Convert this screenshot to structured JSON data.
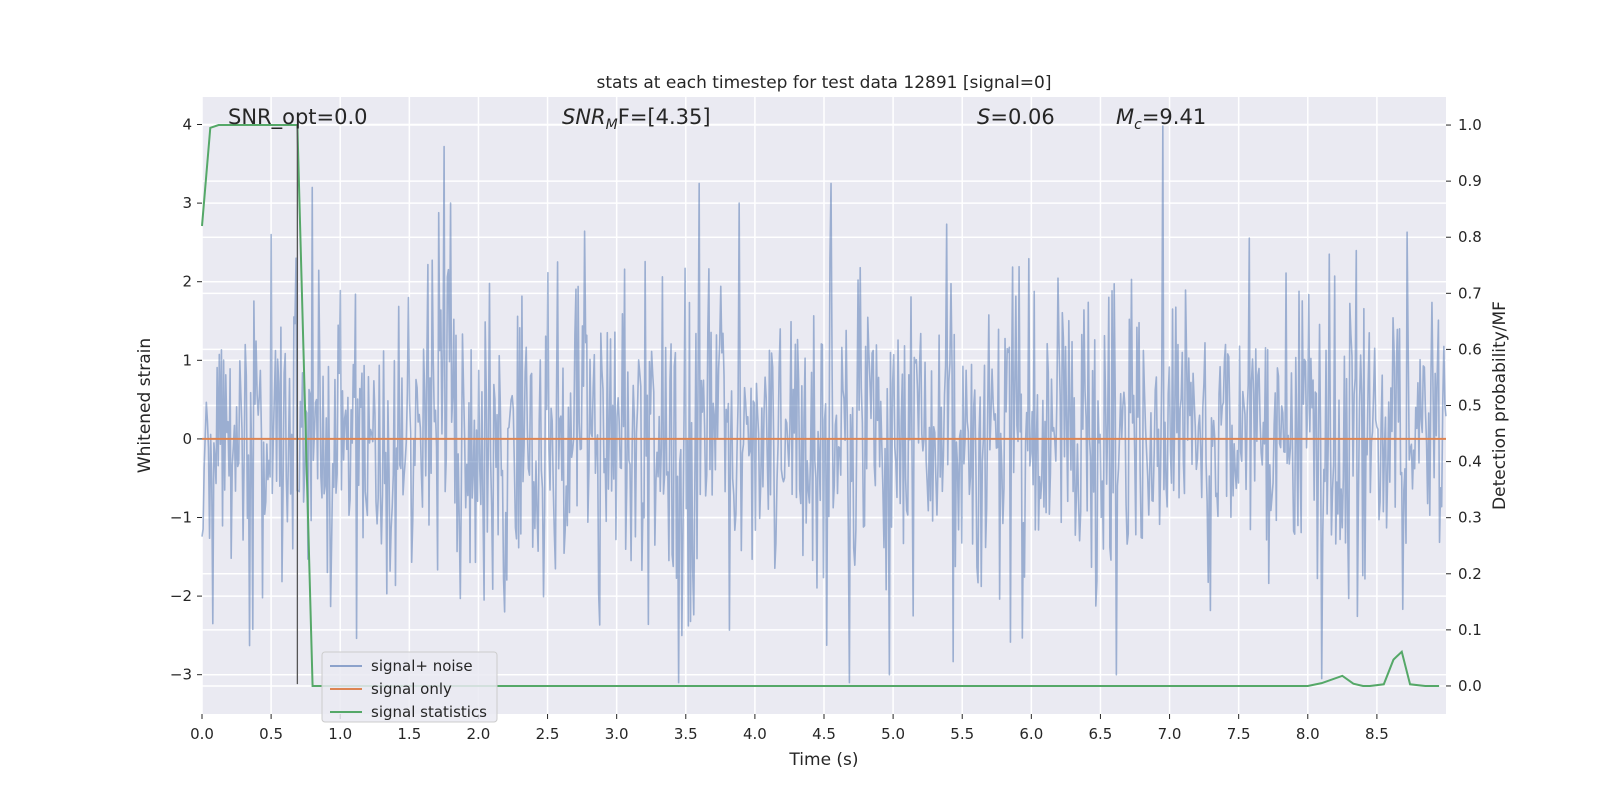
{
  "chart_data": {
    "type": "line",
    "title": "stats at each timestep for test data 12891 [signal=0]",
    "xlabel": "Time (s)",
    "ylabel": "Whitened strain",
    "y2label": "Detection probability/MF",
    "xlim": [
      0.0,
      9.0
    ],
    "ylim": [
      -3.5,
      4.35
    ],
    "y2lim": [
      -0.05,
      1.05
    ],
    "x_ticks": [
      "0.0",
      "0.5",
      "1.0",
      "1.5",
      "2.0",
      "2.5",
      "3.0",
      "3.5",
      "4.0",
      "4.5",
      "5.0",
      "5.5",
      "6.0",
      "6.5",
      "7.0",
      "7.5",
      "8.0",
      "8.5"
    ],
    "y_ticks": [
      "4",
      "3",
      "2",
      "1",
      "0",
      "−1",
      "−2",
      "−3"
    ],
    "y2_ticks": [
      "1.0",
      "0.9",
      "0.8",
      "0.7",
      "0.6",
      "0.5",
      "0.4",
      "0.3",
      "0.2",
      "0.1",
      "0.0"
    ],
    "grid": true,
    "legend_placement": "lower-left",
    "annotations": {
      "snr_opt": "SNR_opt=0.0",
      "snr_mf_main": "SNR",
      "snr_mf_sub": "M",
      "snr_mf_rest": "F=[4.35]",
      "s_main": "S",
      "s_rest": "=0.06",
      "mc_main": "M",
      "mc_sub": "c",
      "mc_rest": "=9.41"
    },
    "series": [
      {
        "name": "signal+ noise",
        "axis": "left",
        "color": "#4c72b0",
        "style": "noise",
        "seed": 12891,
        "n_samples": 1152,
        "spikes": [
          {
            "x": 0.08,
            "y": -2.35
          },
          {
            "x": 0.5,
            "y": 2.6
          },
          {
            "x": 0.68,
            "y": 2.3
          },
          {
            "x": 0.8,
            "y": 3.2
          },
          {
            "x": 1.75,
            "y": 3.72
          },
          {
            "x": 3.45,
            "y": -3.1
          },
          {
            "x": 3.6,
            "y": 3.25
          },
          {
            "x": 4.55,
            "y": 3.25
          },
          {
            "x": 4.68,
            "y": -3.1
          },
          {
            "x": 6.95,
            "y": 3.98
          },
          {
            "x": 8.1,
            "y": -3.05
          }
        ]
      },
      {
        "name": "signal only",
        "axis": "left",
        "color": "#dd8452",
        "x": [
          0.0,
          9.0
        ],
        "y": [
          0.0,
          0.0
        ]
      },
      {
        "name": "signal statistics",
        "axis": "right",
        "color": "#55a868",
        "x": [
          0.0,
          0.06,
          0.12,
          0.2,
          0.3,
          0.4,
          0.5,
          0.6,
          0.69,
          0.8,
          1.0,
          2.0,
          3.0,
          4.0,
          5.0,
          6.0,
          7.0,
          7.5,
          8.0,
          8.1,
          8.25,
          8.33,
          8.4,
          8.45,
          8.55,
          8.62,
          8.68,
          8.74,
          8.85,
          8.95
        ],
        "y": [
          0.82,
          0.995,
          1.0,
          1.0,
          1.0,
          1.0,
          1.0,
          1.0,
          1.0,
          0.0,
          0.0,
          0.0,
          0.0,
          0.0,
          0.0,
          0.0,
          0.0,
          0.0,
          0.0,
          0.005,
          0.018,
          0.004,
          0.0,
          0.0,
          0.003,
          0.047,
          0.061,
          0.003,
          0.0,
          0.0
        ]
      },
      {
        "name": "",
        "axis": "left",
        "color": "#555555",
        "style": "vline",
        "x": [
          0.69,
          0.69
        ],
        "y": [
          -3.12,
          4.0
        ]
      }
    ]
  }
}
